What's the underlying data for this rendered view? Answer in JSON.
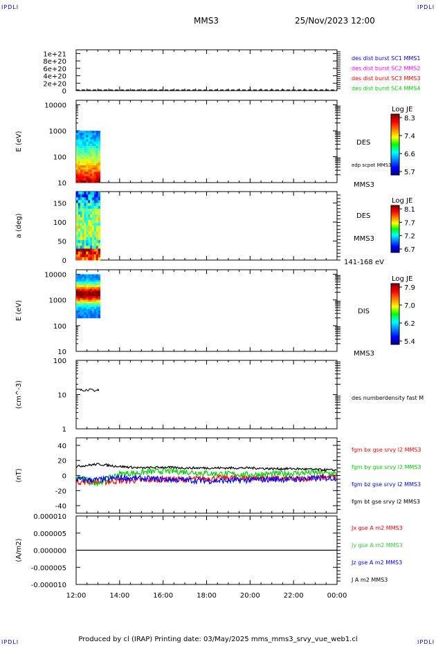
{
  "header": {
    "corner_label": "IPDLI",
    "spacecraft": "MMS3",
    "datetime": "25/Nov/2023 12:00"
  },
  "footer": {
    "text": "Produced by cl (IRAP)   Printing date: 03/May/2025   mms_mms3_srvy_vue_web1.cl"
  },
  "colors": {
    "black": "#000000",
    "red": "#ff0000",
    "green": "#00cc00",
    "blue": "#0000ff",
    "magenta": "#ff00ff",
    "lightgreen": "#33cc33"
  },
  "chart_data": [
    {
      "type": "line",
      "panel": "dist-burst",
      "ylabel": "",
      "ylim": [
        0,
        1.1e+21
      ],
      "ticks": [
        "0",
        "2e+20",
        "4e+20",
        "6e+20",
        "8e+20",
        "1e+21"
      ],
      "tick_values": [
        0,
        2e+20,
        4e+20,
        6e+20,
        8e+20,
        1e+21
      ],
      "legend": [
        {
          "label": "des dist burst SC1 MMS1",
          "color": "#0000ff"
        },
        {
          "label": "des dist burst SC2 MMS2",
          "color": "#ff00ff"
        },
        {
          "label": "des dist burst SC3 MMS3",
          "color": "#ff0000"
        },
        {
          "label": "des dist burst SC4 MMS4",
          "color": "#00cc00"
        }
      ],
      "series": [
        {
          "values": [
            0,
            0
          ]
        }
      ]
    },
    {
      "type": "heatmap",
      "panel": "des-energy",
      "ylabel": "E (eV)",
      "scale": "log",
      "ylim": [
        10,
        15000
      ],
      "ticks": [
        "10",
        "100",
        "1000",
        "10000"
      ],
      "tick_values": [
        10,
        100,
        1000,
        10000
      ],
      "side_labels": [
        "DES",
        "edp scpot MMS3"
      ],
      "below_label": "MMS3",
      "data_x_range": [
        12.0,
        13.1
      ],
      "data_y_range": [
        10,
        1000
      ],
      "colorbar": {
        "title": "Log JE",
        "ticks": [
          "8.3",
          "7.4",
          "6.6",
          "5.7"
        ]
      }
    },
    {
      "type": "heatmap",
      "panel": "des-pitch",
      "ylabel": "a (deg)",
      "ylim": [
        0,
        180
      ],
      "ticks": [
        "0",
        "50",
        "100",
        "150"
      ],
      "tick_values": [
        0,
        50,
        100,
        150
      ],
      "side_labels": [
        "DES",
        "MMS3"
      ],
      "below_label": "141-168 eV",
      "data_x_range": [
        12.0,
        13.1
      ],
      "data_y_range": [
        0,
        180
      ],
      "colorbar": {
        "title": "Log JE",
        "ticks": [
          "8.1",
          "7.7",
          "7.2",
          "6.7"
        ]
      }
    },
    {
      "type": "heatmap",
      "panel": "dis-energy",
      "ylabel": "E (eV)",
      "scale": "log",
      "ylim": [
        10,
        15000
      ],
      "ticks": [
        "10",
        "100",
        "1000",
        "10000"
      ],
      "tick_values": [
        10,
        100,
        1000,
        10000
      ],
      "side_labels": [
        "DIS"
      ],
      "below_label": "MMS3",
      "data_x_range": [
        12.0,
        13.1
      ],
      "data_y_range": [
        200,
        10000
      ],
      "colorbar": {
        "title": "Log JE",
        "ticks": [
          "7.9",
          "7.0",
          "6.2",
          "5.4"
        ]
      }
    },
    {
      "type": "line",
      "panel": "density",
      "ylabel": "(cm^-3)",
      "scale": "log",
      "ylim": [
        1,
        100
      ],
      "ticks": [
        "1",
        "10",
        "100"
      ],
      "tick_values": [
        1,
        10,
        100
      ],
      "legend": [
        {
          "label": "des numberdensity fast M",
          "color": "#000000"
        }
      ],
      "series": [
        {
          "name": "des numberdensity fast M",
          "x": [
            12.0,
            12.3,
            12.6,
            12.9,
            13.05
          ],
          "values": [
            14,
            13.5,
            14,
            13,
            14
          ]
        }
      ]
    },
    {
      "type": "line",
      "panel": "fgm",
      "ylabel": "(nT)",
      "ylim": [
        -50,
        50
      ],
      "ticks": [
        "-40",
        "-20",
        "0",
        "20",
        "40"
      ],
      "tick_values": [
        -40,
        -20,
        0,
        20,
        40
      ],
      "legend": [
        {
          "label": "fgm bx gse srvy l2 MMS3",
          "color": "#ff0000"
        },
        {
          "label": "fgm by gse srvy l2 MMS3",
          "color": "#00cc00"
        },
        {
          "label": "fgm bz gse srvy l2 MMS3",
          "color": "#0000ff"
        },
        {
          "label": "fgm bt gse srvy l2 MMS3",
          "color": "#000000"
        }
      ],
      "x": [
        12,
        13,
        14,
        15,
        16,
        17,
        18,
        19,
        20,
        21,
        22,
        23,
        24
      ],
      "series": [
        {
          "name": "fgm bx gse srvy l2 MMS3",
          "values": [
            -8,
            -9,
            -7,
            -6,
            -5,
            -5,
            -4,
            -3,
            -3,
            -4,
            -5,
            -3,
            -2
          ]
        },
        {
          "name": "fgm by gse srvy l2 MMS3",
          "values": [
            -2,
            -10,
            2,
            4,
            6,
            5,
            3,
            2,
            1,
            2,
            3,
            4,
            2
          ]
        },
        {
          "name": "fgm bz gse srvy l2 MMS3",
          "values": [
            -5,
            -6,
            -3,
            -4,
            -5,
            -6,
            -7,
            -7,
            -6,
            -5,
            -5,
            -4,
            -3
          ]
        },
        {
          "name": "fgm bt gse srvy l2 MMS3",
          "values": [
            12,
            15,
            12,
            10,
            11,
            10,
            10,
            10,
            10,
            9,
            9,
            8,
            7
          ]
        }
      ]
    },
    {
      "type": "line",
      "panel": "current",
      "ylabel": "(A/m2)",
      "ylim": [
        -1e-05,
        1e-05
      ],
      "ticks": [
        "-0.000010",
        "-0.000005",
        "0.000000",
        "0.000005",
        "0.000010"
      ],
      "tick_values": [
        -1e-05,
        -5e-06,
        0,
        5e-06,
        1e-05
      ],
      "legend": [
        {
          "label": "Jx gse A m2 MMS3",
          "color": "#ff0000"
        },
        {
          "label": "Jy gse A m2 MMS3",
          "color": "#33cc33"
        },
        {
          "label": "Jz gse A m2 MMS3",
          "color": "#0000ff"
        },
        {
          "label": "J A m2 MMS3",
          "color": "#000000"
        }
      ],
      "series": [
        {
          "name": "J A m2 MMS3",
          "x": [
            12,
            24
          ],
          "values": [
            0,
            0
          ]
        }
      ]
    }
  ],
  "x_axis": {
    "range": [
      12,
      24
    ],
    "ticks": [
      "12:00",
      "14:00",
      "16:00",
      "18:00",
      "20:00",
      "22:00",
      "00:00"
    ],
    "tick_values": [
      12,
      14,
      16,
      18,
      20,
      22,
      24
    ]
  }
}
